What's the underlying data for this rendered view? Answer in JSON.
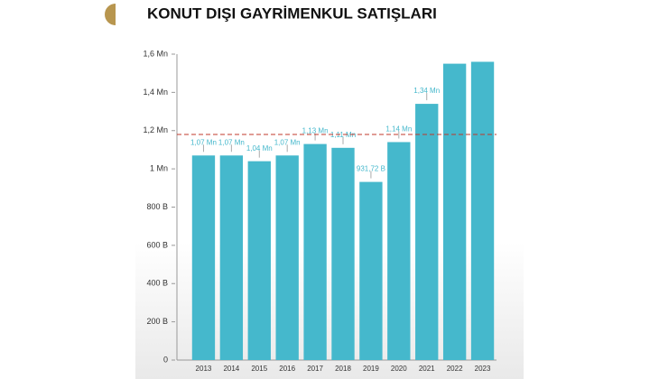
{
  "chart_data": {
    "type": "bar",
    "title": "KONUT DIŞI GAYRİMENKUL SATIŞLARI",
    "categories": [
      "2013",
      "2014",
      "2015",
      "2016",
      "2017",
      "2018",
      "2019",
      "2020",
      "2021",
      "2022",
      "2023"
    ],
    "values": [
      1070000,
      1070000,
      1040000,
      1070000,
      1130000,
      1110000,
      931720,
      1140000,
      1340000,
      1550000,
      1560000
    ],
    "value_labels": [
      "1,07 Mn",
      "1,07 Mn",
      "1,04 Mn",
      "1,07 Mn",
      "1,13 Mn",
      "1,11 Mn",
      "931,72 B",
      "1,14 Mn",
      "1,34 Mn",
      null,
      null
    ],
    "color": "#45b8cc",
    "ylim": [
      0,
      1600000
    ],
    "yticks": [
      0,
      {
        "value": 200000,
        "label": "200 B"
      },
      {
        "value": 400000,
        "label": "400 B"
      },
      {
        "value": 600000,
        "label": "600 B"
      },
      {
        "value": 800000,
        "label": "800 B"
      },
      {
        "value": 1000000,
        "label": "1 Mn"
      },
      {
        "value": 1200000,
        "label": "1,2 Mn"
      },
      {
        "value": 1400000,
        "label": "1,4 Mn"
      },
      {
        "value": 1600000,
        "label": "1,6 Mn"
      }
    ],
    "reference_line": 1180000,
    "reference_color": "#c0392b"
  }
}
